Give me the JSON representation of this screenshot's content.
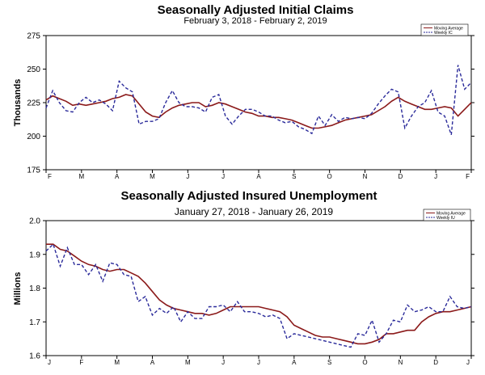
{
  "chart_data": [
    {
      "type": "line",
      "title": "Seasonally Adjusted Initial  Claims",
      "subtitle": "February 3, 2018 - February 2, 2019",
      "ylabel": "Thousands",
      "xlabel": "",
      "ylim": [
        175,
        275
      ],
      "yticks": [
        "275",
        "250",
        "225",
        "200",
        "175"
      ],
      "xticks": [
        "F",
        "M",
        "A",
        "M",
        "J",
        "J",
        "A",
        "S",
        "O",
        "N",
        "D",
        "J",
        "F"
      ],
      "grid": false,
      "legend": "top-right",
      "colors": {
        "moving_average": "#8b1a1a",
        "weekly": "#2a2a9a"
      },
      "series": [
        {
          "name": "Moving Average",
          "style": "solid",
          "values": [
            227,
            230,
            228,
            226,
            223,
            224,
            223,
            224,
            225,
            226,
            228,
            229,
            231,
            230,
            224,
            218,
            215,
            214,
            218,
            221,
            223,
            224,
            225,
            225,
            222,
            223,
            225,
            224,
            222,
            220,
            218,
            217,
            215,
            215,
            214,
            214,
            213,
            212,
            210,
            208,
            206,
            206,
            207,
            208,
            210,
            212,
            213,
            214,
            215,
            216,
            219,
            222,
            226,
            229,
            226,
            224,
            222,
            220,
            220,
            221,
            222,
            221,
            215,
            220,
            225
          ]
        },
        {
          "name": "Weekly IC",
          "style": "dashed",
          "values": [
            221,
            234,
            225,
            219,
            218,
            225,
            229,
            225,
            227,
            224,
            219,
            241,
            236,
            233,
            209,
            211,
            211,
            213,
            225,
            234,
            225,
            222,
            222,
            221,
            218,
            229,
            231,
            215,
            209,
            215,
            220,
            220,
            218,
            215,
            215,
            212,
            210,
            211,
            207,
            205,
            202,
            215,
            208,
            216,
            211,
            214,
            213,
            214,
            213,
            217,
            224,
            230,
            235,
            233,
            206,
            215,
            222,
            225,
            234,
            218,
            215,
            201,
            253,
            235,
            240
          ]
        }
      ]
    },
    {
      "type": "line",
      "title": "Seasonally Adjusted Insured Unemployment",
      "subtitle": "January 27, 2018 - January 26, 2019",
      "ylabel": "Millions",
      "xlabel": "",
      "ylim": [
        1.6,
        2.0
      ],
      "yticks": [
        "2.0",
        "1.9",
        "1.8",
        "1.7",
        "1.6"
      ],
      "xticks": [
        "J",
        "F",
        "M",
        "A",
        "M",
        "J",
        "J",
        "A",
        "S",
        "O",
        "N",
        "D",
        "J"
      ],
      "grid": false,
      "legend": "top-right",
      "colors": {
        "moving_average": "#8b1a1a",
        "weekly": "#2a2a9a"
      },
      "series": [
        {
          "name": "Moving Average",
          "style": "solid",
          "values": [
            1.93,
            1.93,
            1.915,
            1.91,
            1.895,
            1.88,
            1.87,
            1.865,
            1.855,
            1.85,
            1.855,
            1.855,
            1.845,
            1.835,
            1.815,
            1.79,
            1.765,
            1.75,
            1.74,
            1.735,
            1.73,
            1.725,
            1.725,
            1.72,
            1.725,
            1.735,
            1.745,
            1.745,
            1.745,
            1.745,
            1.745,
            1.74,
            1.735,
            1.73,
            1.715,
            1.69,
            1.68,
            1.67,
            1.66,
            1.655,
            1.655,
            1.65,
            1.645,
            1.64,
            1.635,
            1.635,
            1.64,
            1.648,
            1.665,
            1.665,
            1.67,
            1.675,
            1.675,
            1.7,
            1.715,
            1.725,
            1.73,
            1.73,
            1.735,
            1.74,
            1.745
          ]
        },
        {
          "name": "Weekly IU",
          "style": "dashed",
          "values": [
            1.91,
            1.93,
            1.865,
            1.92,
            1.87,
            1.87,
            1.84,
            1.87,
            1.82,
            1.875,
            1.87,
            1.84,
            1.835,
            1.76,
            1.775,
            1.72,
            1.74,
            1.725,
            1.745,
            1.7,
            1.73,
            1.71,
            1.71,
            1.745,
            1.745,
            1.75,
            1.73,
            1.76,
            1.73,
            1.73,
            1.725,
            1.715,
            1.72,
            1.71,
            1.65,
            1.665,
            1.66,
            1.655,
            1.65,
            1.645,
            1.64,
            1.635,
            1.63,
            1.625,
            1.665,
            1.66,
            1.705,
            1.64,
            1.665,
            1.705,
            1.7,
            1.75,
            1.73,
            1.735,
            1.745,
            1.73,
            1.73,
            1.775,
            1.745,
            1.74,
            1.745
          ]
        }
      ]
    }
  ]
}
